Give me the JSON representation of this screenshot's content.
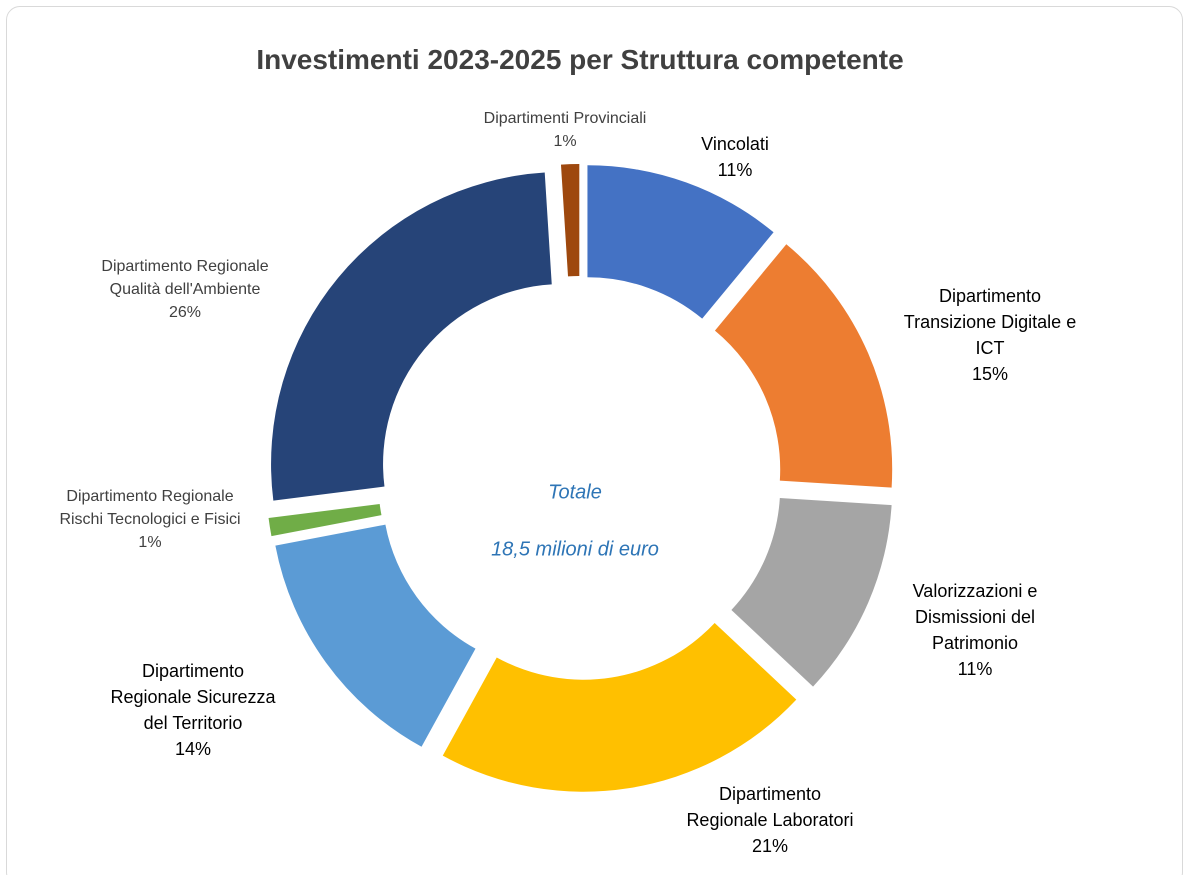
{
  "chart_data": {
    "type": "donut",
    "title": "Investimenti 2023-2025 per Struttura competente",
    "annotations": [
      "Totale",
      "18,5 milioni di euro"
    ],
    "categories": [
      "Vincolati",
      "Dipartimento\nTransizione Digitale e\nICT",
      "Valorizzazioni e\nDismissioni del\nPatrimonio",
      "Dipartimento\nRegionale Laboratori",
      "Dipartimento\nRegionale Sicurezza\ndel Territorio",
      "Dipartimento Regionale\nRischi Tecnologici e Fisici",
      "Dipartimento Regionale\nQualità dell'Ambiente",
      "Dipartimenti Provinciali"
    ],
    "values": [
      11,
      15,
      11,
      21,
      14,
      1,
      26,
      1
    ],
    "value_labels": [
      "11%",
      "15%",
      "11%",
      "21%",
      "14%",
      "1%",
      "26%",
      "1%"
    ],
    "colors": [
      "#4472c4",
      "#ed7d31",
      "#a5a5a5",
      "#ffc000",
      "#5b9bd5",
      "#70ad47",
      "#264478",
      "#9e480e"
    ]
  }
}
